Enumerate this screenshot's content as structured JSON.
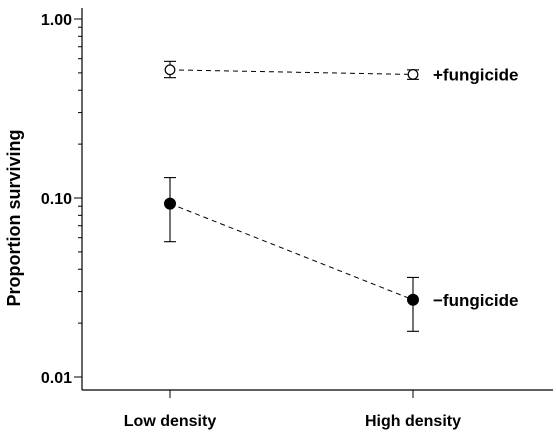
{
  "chart_data": {
    "type": "scatter",
    "ylabel": "Proportion surviving",
    "xlabel": "",
    "yscale": "log",
    "ylim": [
      0.01,
      1.0
    ],
    "y_ticks": [
      1.0,
      0.1,
      0.01
    ],
    "y_tick_labels": [
      "1.00",
      "0.10",
      "0.01"
    ],
    "categories": [
      "Low density",
      "High density"
    ],
    "grid": false,
    "legend": "none",
    "series": [
      {
        "name": "+fungicide",
        "marker": "open-circle",
        "line": "dashed",
        "color": "#000000",
        "values": [
          0.52,
          0.49
        ],
        "err_low": [
          0.47,
          0.46
        ],
        "err_high": [
          0.58,
          0.52
        ]
      },
      {
        "name": "−fungicide",
        "marker": "filled-circle",
        "line": "dashed",
        "color": "#000000",
        "values": [
          0.093,
          0.027
        ],
        "err_low": [
          0.057,
          0.018
        ],
        "err_high": [
          0.13,
          0.036
        ]
      }
    ]
  }
}
